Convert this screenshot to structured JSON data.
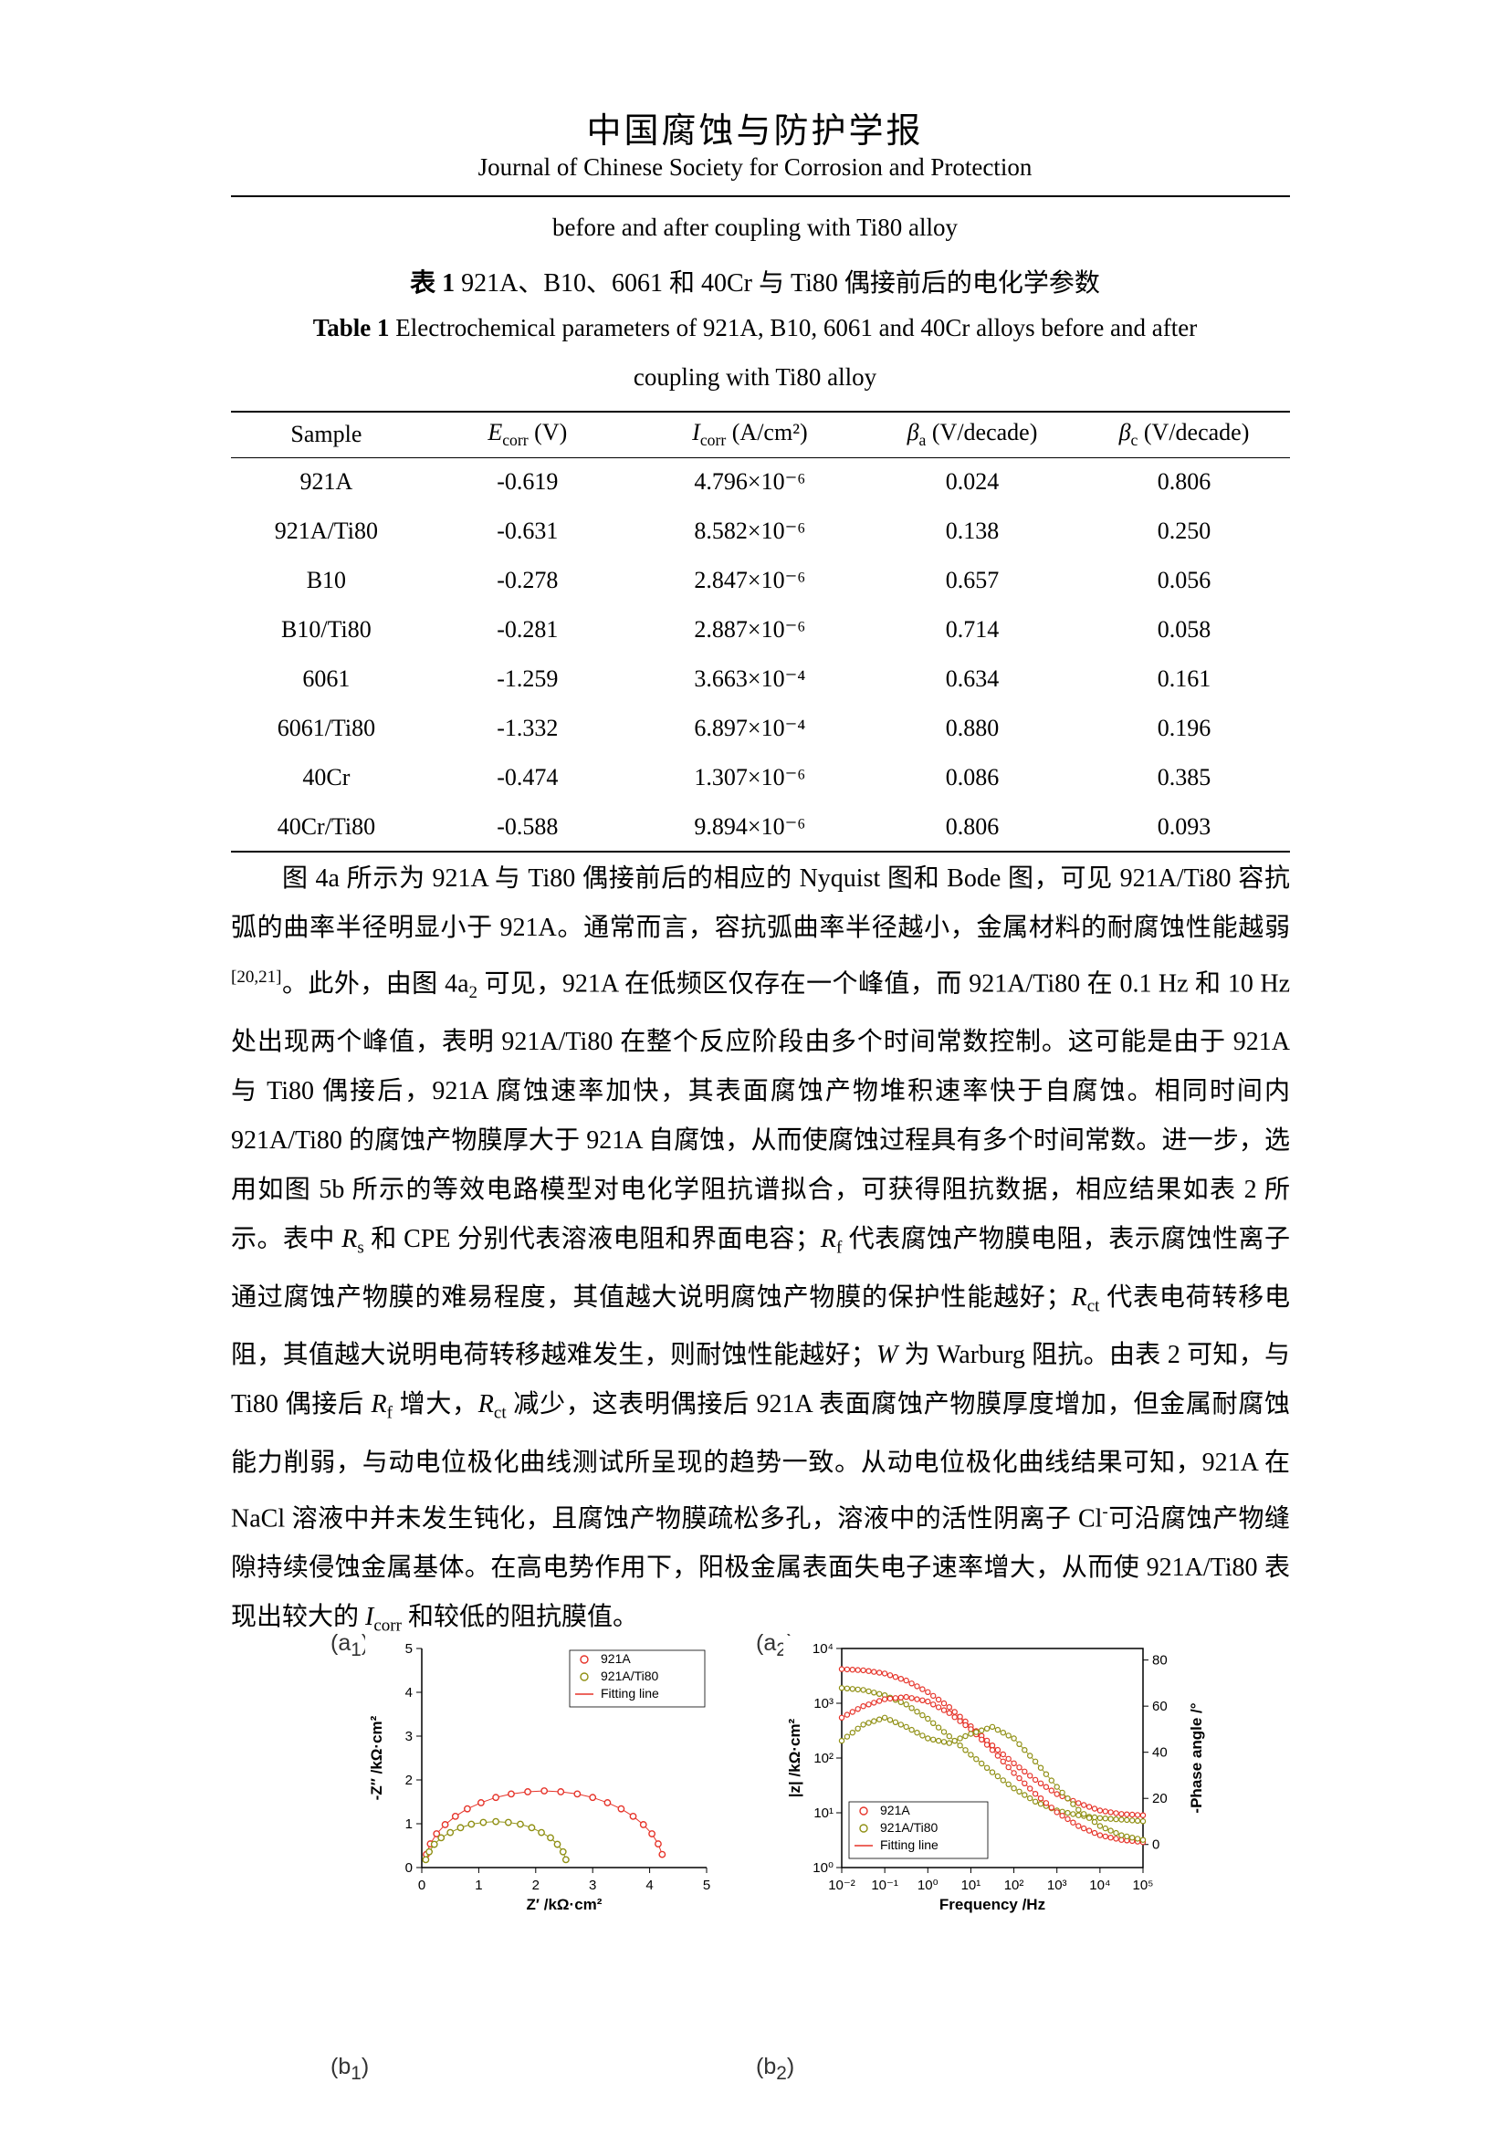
{
  "header": {
    "journal_title_zh": "中国腐蚀与防护学报",
    "journal_title_en": "Journal of Chinese Society for Corrosion and Protection"
  },
  "captions": {
    "continued_line": "before and after coupling with Ti80 alloy",
    "table_zh_bold": "表 1",
    "table_zh_rest": " 921A、B10、6061 和 40Cr 与 Ti80 偶接前后的电化学参数",
    "table_en_bold": "Table 1",
    "table_en_rest": " Electrochemical parameters of 921A, B10, 6061 and 40Cr alloys before and after",
    "table_en_line2": "coupling with Ti80 alloy"
  },
  "table": {
    "headers": [
      {
        "sym": "Sample",
        "sub": "",
        "rest": ""
      },
      {
        "sym": "E",
        "sub": "corr",
        "rest": " (V)"
      },
      {
        "sym": "I",
        "sub": "corr",
        "rest": " (A/cm²)"
      },
      {
        "sym": "β",
        "sub": "a",
        "rest": " (V/decade)"
      },
      {
        "sym": "β",
        "sub": "c",
        "rest": " (V/decade)"
      }
    ],
    "rows": [
      [
        "921A",
        "-0.619",
        "4.796×10⁻⁶",
        "0.024",
        "0.806"
      ],
      [
        "921A/Ti80",
        "-0.631",
        "8.582×10⁻⁶",
        "0.138",
        "0.250"
      ],
      [
        "B10",
        "-0.278",
        "2.847×10⁻⁶",
        "0.657",
        "0.056"
      ],
      [
        "B10/Ti80",
        "-0.281",
        "2.887×10⁻⁶",
        "0.714",
        "0.058"
      ],
      [
        "6061",
        "-1.259",
        "3.663×10⁻⁴",
        "0.634",
        "0.161"
      ],
      [
        "6061/Ti80",
        "-1.332",
        "6.897×10⁻⁴",
        "0.880",
        "0.196"
      ],
      [
        "40Cr",
        "-0.474",
        "1.307×10⁻⁶",
        "0.086",
        "0.385"
      ],
      [
        "40Cr/Ti80",
        "-0.588",
        "9.894×10⁻⁶",
        "0.806",
        "0.093"
      ]
    ]
  },
  "paragraph": {
    "segments": [
      {
        "t": "图 4a 所示为 921A 与 Ti80 偶接前后的相应的 Nyquist 图和 Bode 图，可见 921A/Ti80 容抗弧的曲率半径明显小于 921A。通常而言，容抗弧曲率半径越小，金属材料的耐腐蚀性能越弱"
      },
      {
        "t": "[20,21]",
        "sup": 1
      },
      {
        "t": "。此外，由图 4a"
      },
      {
        "t": "2",
        "sub": 1
      },
      {
        "t": " 可见，921A 在低频区仅存在一个峰值，而 921A/Ti80 在 0.1 Hz 和 10 Hz 处出现两个峰值，表明 921A/Ti80 在整个反应阶段由多个时间常数控制。这可能是由于 921A 与 Ti80 偶接后，921A 腐蚀速率加快，其表面腐蚀产物堆积速率快于自腐蚀。相同时间内 921A/Ti80 的腐蚀产物膜厚大于 921A 自腐蚀，从而使腐蚀过程具有多个时间常数。进一步，选用如图 5b 所示的等效电路模型对电化学阻抗谱拟合，可获得阻抗数据，相应结果如表 2 所示。表中 "
      },
      {
        "t": "R",
        "i": 1
      },
      {
        "t": "s",
        "sub": 1
      },
      {
        "t": " 和 CPE 分别代表溶液电阻和界面电容；"
      },
      {
        "t": "R",
        "i": 1
      },
      {
        "t": "f",
        "sub": 1
      },
      {
        "t": " 代表腐蚀产物膜电阻，表示腐蚀性离子通过腐蚀产物膜的难易程度，其值越大说明腐蚀产物膜的保护性能越好；"
      },
      {
        "t": "R",
        "i": 1
      },
      {
        "t": "ct",
        "sub": 1
      },
      {
        "t": " 代表电荷转移电阻，其值越大说明电荷转移越难发生，则耐蚀性能越好；"
      },
      {
        "t": "W",
        "i": 1
      },
      {
        "t": " 为 Warburg 阻抗。由表 2 可知，与 Ti80 偶接后 "
      },
      {
        "t": "R",
        "i": 1
      },
      {
        "t": "f",
        "sub": 1
      },
      {
        "t": " 增大，"
      },
      {
        "t": "R",
        "i": 1
      },
      {
        "t": "ct",
        "sub": 1
      },
      {
        "t": " 减少，这表明偶接后 921A 表面腐蚀产物膜厚度增加，但金属耐腐蚀能力削弱，与动电位极化曲线测试所呈现的趋势一致。从动电位极化曲线结果可知，921A 在 NaCl 溶液中并未发生钝化，且腐蚀产物膜疏松多孔，溶液中的活性阴离子 Cl"
      },
      {
        "t": "-",
        "sup": 1
      },
      {
        "t": "可沿腐蚀产物缝隙持续侵蚀金属基体。在高电势作用下，阳极金属表面失电子速率增大，从而使 921A/Ti80 表现出较大的 "
      },
      {
        "t": "I",
        "i": 1
      },
      {
        "t": "corr",
        "sub": 1
      },
      {
        "t": " 和较低的阻抗膜值。"
      }
    ]
  },
  "figures": {
    "a1": {
      "pre": "(a",
      "sub": "1",
      "post": ")"
    },
    "a2": {
      "pre": "(a",
      "sub": "2",
      "post": ")"
    },
    "b1": {
      "pre": "(b",
      "sub": "1",
      "post": ")"
    },
    "b2": {
      "pre": "(b",
      "sub": "2",
      "post": ")"
    }
  },
  "colors": {
    "series_921A": "#e63329",
    "series_921A_Ti80": "#8f8f13",
    "fitting_line": "#e63329",
    "axis": "#000000"
  },
  "chart_data": [
    {
      "id": "a1",
      "type": "scatter",
      "title": "",
      "xlabel": "Z′ /kΩ·cm²",
      "ylabel": "-Z″ /kΩ·cm²",
      "xlim": [
        0,
        5
      ],
      "ylim": [
        0,
        5
      ],
      "xticks": [
        0,
        1,
        2,
        3,
        4,
        5
      ],
      "yticks": [
        0,
        1,
        2,
        3,
        4,
        5
      ],
      "legend": [
        "921A",
        "921A/Ti80",
        "Fitting line"
      ],
      "legend_position": "top-right",
      "series": [
        {
          "name": "921A",
          "color": "#e63329",
          "points": [
            [
              0.08,
              0.3
            ],
            [
              0.15,
              0.54
            ],
            [
              0.26,
              0.77
            ],
            [
              0.41,
              0.98
            ],
            [
              0.59,
              1.17
            ],
            [
              0.8,
              1.34
            ],
            [
              1.04,
              1.48
            ],
            [
              1.3,
              1.6
            ],
            [
              1.57,
              1.68
            ],
            [
              1.86,
              1.73
            ],
            [
              2.15,
              1.75
            ],
            [
              2.44,
              1.73
            ],
            [
              2.73,
              1.68
            ],
            [
              3.0,
              1.6
            ],
            [
              3.26,
              1.48
            ],
            [
              3.5,
              1.34
            ],
            [
              3.71,
              1.17
            ],
            [
              3.89,
              0.98
            ],
            [
              4.04,
              0.77
            ],
            [
              4.15,
              0.54
            ],
            [
              4.22,
              0.3
            ]
          ]
        },
        {
          "name": "921A/Ti80",
          "color": "#8f8f13",
          "points": [
            [
              0.07,
              0.18
            ],
            [
              0.13,
              0.36
            ],
            [
              0.22,
              0.53
            ],
            [
              0.34,
              0.68
            ],
            [
              0.5,
              0.8
            ],
            [
              0.68,
              0.91
            ],
            [
              0.87,
              0.99
            ],
            [
              1.08,
              1.03
            ],
            [
              1.3,
              1.05
            ],
            [
              1.52,
              1.03
            ],
            [
              1.73,
              0.99
            ],
            [
              1.93,
              0.91
            ],
            [
              2.1,
              0.8
            ],
            [
              2.26,
              0.68
            ],
            [
              2.38,
              0.53
            ],
            [
              2.48,
              0.36
            ],
            [
              2.53,
              0.18
            ]
          ]
        }
      ]
    },
    {
      "id": "a2",
      "type": "line",
      "title": "",
      "xlabel": "Frequency /Hz",
      "ylabel_left": "|z| /kΩ·cm²",
      "ylabel_right": "-Phase angle /°",
      "x_log": true,
      "y_left_log": true,
      "xlog_range": [
        -2,
        5
      ],
      "ylog_left_range": [
        0,
        4
      ],
      "y_right_range": [
        -10,
        85
      ],
      "xtick_labels": [
        "10⁻²",
        "10⁻¹",
        "10⁰",
        "10¹",
        "10²",
        "10³",
        "10⁴",
        "10⁵"
      ],
      "ytick_left_labels": [
        "10⁰",
        "10¹",
        "10²",
        "10³",
        "10⁴"
      ],
      "ytick_right_values": [
        0,
        20,
        40,
        60,
        80
      ],
      "legend": [
        "921A",
        "921A/Ti80",
        "Fitting line"
      ],
      "legend_position": "bottom-left",
      "frequencies": [
        0.01,
        0.0316,
        0.1,
        0.316,
        1,
        3.16,
        10,
        31.6,
        100,
        316,
        1000,
        3162,
        10000,
        31623,
        100000
      ],
      "series_impedance": [
        {
          "name": "921A",
          "color": "#e63329",
          "values": [
            4200,
            4000,
            3500,
            2600,
            1600,
            850,
            380,
            170,
            80,
            40,
            22,
            15,
            11,
            9.5,
            9
          ]
        },
        {
          "name": "921A/Ti80",
          "color": "#8f8f13",
          "values": [
            1900,
            1750,
            1400,
            950,
            520,
            250,
            115,
            55,
            28,
            16,
            11,
            9,
            8,
            7.5,
            7
          ]
        }
      ],
      "series_phase": [
        {
          "name": "921A",
          "color": "#e63329",
          "values": [
            55,
            60,
            63,
            64,
            62,
            57,
            50,
            41,
            31,
            22,
            14,
            8,
            4,
            2,
            1
          ]
        },
        {
          "name": "921A/Ti80",
          "color": "#8f8f13",
          "values": [
            45,
            52,
            55,
            51,
            46,
            44,
            48,
            51,
            46,
            36,
            25,
            15,
            8,
            4,
            2
          ]
        }
      ]
    }
  ]
}
